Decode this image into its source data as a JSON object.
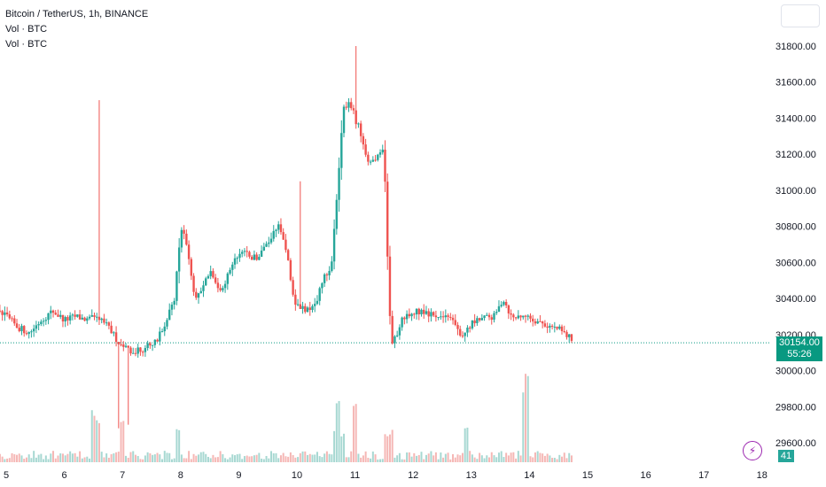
{
  "header": {
    "title": "Bitcoin / TetherUS, 1h, BINANCE",
    "indicator_1": "Vol · BTC",
    "indicator_2": "Vol · BTC"
  },
  "price_axis": {
    "ticks": [
      "31800.00",
      "31600.00",
      "31400.00",
      "31200.00",
      "31000.00",
      "30800.00",
      "30600.00",
      "30400.00",
      "30200.00",
      "30000.00",
      "29800.00",
      "29600.00"
    ],
    "last_price": "30154.00",
    "countdown": "55:26"
  },
  "volume": {
    "last_value": "41"
  },
  "time_axis": {
    "labels": [
      "5",
      "6",
      "7",
      "8",
      "9",
      "10",
      "11",
      "12",
      "13",
      "14",
      "15",
      "16",
      "17",
      "18"
    ]
  },
  "icons": {
    "top_right": "chart-settings-icon",
    "bolt": "lightning-bolt-icon"
  },
  "colors": {
    "up": "#26a69a",
    "down": "#ef5350",
    "up_volume": "#a7d8d2",
    "down_volume": "#f5b7b5",
    "last_price_line": "#089981",
    "alert": "#9c27b0"
  },
  "chart_data": {
    "type": "candlestick",
    "title": "Bitcoin / TetherUS, 1h, BINANCE",
    "x_axis": {
      "labels": [
        "5",
        "6",
        "7",
        "8",
        "9",
        "10",
        "11",
        "12",
        "13",
        "14",
        "15",
        "16",
        "17",
        "18"
      ]
    },
    "y_axis": {
      "range": [
        29550,
        31900
      ],
      "ticks": [
        29600,
        29800,
        30000,
        30200,
        30400,
        30600,
        30800,
        31000,
        31200,
        31400,
        31600,
        31800
      ]
    },
    "last_price": 30154.0,
    "grid": false,
    "anchors": [
      [
        0,
        30880
      ],
      [
        0.3,
        30780
      ],
      [
        0.6,
        30860
      ],
      [
        0.8,
        30880
      ],
      [
        1.0,
        30800
      ],
      [
        1.1,
        30720
      ],
      [
        1.3,
        30440
      ],
      [
        1.5,
        30380
      ],
      [
        1.7,
        30560
      ],
      [
        1.9,
        30520
      ],
      [
        2.1,
        30550
      ],
      [
        2.3,
        30520
      ],
      [
        2.5,
        30600
      ],
      [
        2.58,
        30800
      ],
      [
        2.65,
        31300
      ],
      [
        2.75,
        31270
      ],
      [
        2.9,
        30700
      ],
      [
        3.1,
        30420
      ],
      [
        3.3,
        30320
      ],
      [
        3.55,
        30150
      ],
      [
        3.7,
        29950
      ],
      [
        3.85,
        30130
      ],
      [
        4.1,
        30160
      ],
      [
        4.3,
        30250
      ],
      [
        4.5,
        30380
      ],
      [
        4.75,
        30330
      ],
      [
        5.0,
        30300
      ],
      [
        5.2,
        30240
      ],
      [
        5.4,
        30210
      ],
      [
        5.6,
        30280
      ],
      [
        5.8,
        30330
      ],
      [
        6.0,
        30280
      ],
      [
        6.2,
        30300
      ],
      [
        6.4,
        30280
      ],
      [
        6.6,
        30300
      ],
      [
        6.8,
        30220
      ],
      [
        6.95,
        30150
      ],
      [
        7.2,
        30100
      ],
      [
        7.4,
        30130
      ],
      [
        7.6,
        30180
      ],
      [
        7.75,
        30270
      ],
      [
        7.9,
        30400
      ],
      [
        8.0,
        30800
      ],
      [
        8.1,
        30700
      ],
      [
        8.25,
        30400
      ],
      [
        8.5,
        30540
      ],
      [
        8.7,
        30450
      ],
      [
        8.9,
        30600
      ],
      [
        9.1,
        30650
      ],
      [
        9.3,
        30620
      ],
      [
        9.45,
        30700
      ],
      [
        9.6,
        30760
      ],
      [
        9.7,
        30800
      ],
      [
        9.8,
        30700
      ],
      [
        9.95,
        30380
      ],
      [
        10.1,
        30340
      ],
      [
        10.3,
        30350
      ],
      [
        10.45,
        30500
      ],
      [
        10.6,
        30600
      ],
      [
        10.7,
        31000
      ],
      [
        10.8,
        31450
      ],
      [
        10.9,
        31500
      ],
      [
        11.0,
        31400
      ],
      [
        11.1,
        31320
      ],
      [
        11.2,
        31160
      ],
      [
        11.35,
        31180
      ],
      [
        11.5,
        31240
      ],
      [
        11.55,
        30700
      ],
      [
        11.6,
        30300
      ],
      [
        11.65,
        30140
      ],
      [
        11.8,
        30280
      ],
      [
        12.0,
        30330
      ],
      [
        12.2,
        30330
      ],
      [
        12.4,
        30300
      ],
      [
        12.6,
        30310
      ],
      [
        12.75,
        30250
      ],
      [
        12.85,
        30180
      ],
      [
        13.0,
        30260
      ],
      [
        13.2,
        30290
      ],
      [
        13.4,
        30300
      ],
      [
        13.55,
        30400
      ],
      [
        13.7,
        30290
      ],
      [
        13.9,
        30310
      ],
      [
        14.1,
        30280
      ],
      [
        14.3,
        30250
      ],
      [
        14.5,
        30230
      ],
      [
        14.7,
        30180
      ]
    ],
    "volume_note": "hourly volume histogram; largest bars near days 6.5, 11, 12.9, 13.9, 14.9"
  }
}
